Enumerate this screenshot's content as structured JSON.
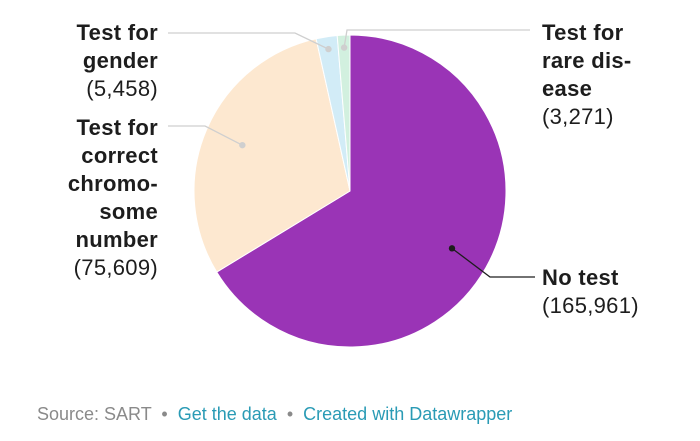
{
  "chart_data": {
    "type": "pie",
    "slices": [
      {
        "label": "No test",
        "display_label": "No test",
        "value": 165961,
        "value_text": "(165,961)",
        "color": "#9a34b6"
      },
      {
        "label": "Test for correct chromosome number",
        "display_label": "Test for\ncorrect\nchromo-\nsome\nnumber",
        "value": 75609,
        "value_text": "(75,609)",
        "color": "#fde8d0"
      },
      {
        "label": "Test for gender",
        "display_label": "Test for\ngender",
        "value": 5458,
        "value_text": "(5,458)",
        "color": "#d2ecf7"
      },
      {
        "label": "Test for rare disease",
        "display_label": "Test for\nrare dis-\nease",
        "value": 3271,
        "value_text": "(3,271)",
        "color": "#d2f0df"
      }
    ],
    "start": "12 o'clock",
    "direction": "clockwise"
  },
  "footer": {
    "source": "Source: SART",
    "sep": "•",
    "get_data": "Get the data",
    "created": "Created with Datawrapper"
  }
}
